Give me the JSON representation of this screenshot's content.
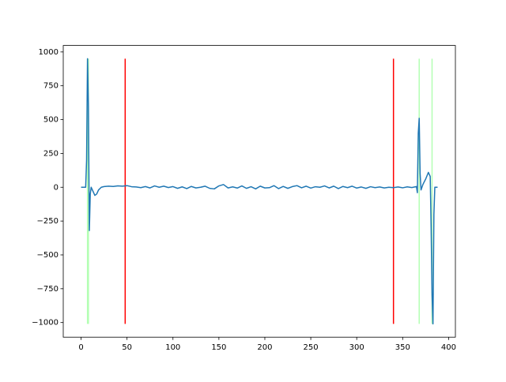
{
  "chart_data": {
    "type": "line",
    "x": [
      0,
      5,
      6,
      7,
      8,
      9,
      10,
      11,
      13,
      15,
      17,
      19,
      22,
      25,
      30,
      35,
      40,
      45,
      50,
      55,
      60,
      65,
      70,
      75,
      80,
      85,
      90,
      95,
      100,
      105,
      110,
      115,
      120,
      125,
      130,
      135,
      140,
      145,
      150,
      155,
      160,
      165,
      170,
      175,
      180,
      185,
      190,
      195,
      200,
      205,
      210,
      215,
      220,
      225,
      230,
      235,
      240,
      245,
      250,
      255,
      260,
      265,
      270,
      275,
      280,
      285,
      290,
      295,
      300,
      305,
      310,
      315,
      320,
      325,
      330,
      335,
      340,
      345,
      350,
      355,
      360,
      365,
      366,
      367,
      368,
      369,
      370,
      372,
      375,
      378,
      380,
      381,
      382,
      383,
      384,
      385,
      388
    ],
    "series": [
      {
        "color": "#1f77b4",
        "values": [
          0,
          0,
          200,
          950,
          600,
          -320,
          -50,
          0,
          -30,
          -60,
          -50,
          -20,
          0,
          5,
          8,
          6,
          10,
          8,
          12,
          4,
          2,
          -3,
          5,
          -5,
          10,
          0,
          8,
          -2,
          5,
          -8,
          3,
          -10,
          6,
          -5,
          0,
          8,
          -8,
          -12,
          10,
          20,
          -5,
          3,
          -6,
          10,
          -8,
          4,
          -12,
          8,
          -5,
          -3,
          12,
          -10,
          6,
          -8,
          5,
          12,
          -4,
          8,
          -6,
          4,
          0,
          10,
          -5,
          8,
          -10,
          6,
          -3,
          8,
          -6,
          2,
          -8,
          4,
          -3,
          2,
          -5,
          0,
          -3,
          2,
          -4,
          3,
          -2,
          5,
          -40,
          400,
          510,
          100,
          -20,
          20,
          60,
          110,
          80,
          -300,
          -800,
          -1010,
          -200,
          0,
          0
        ]
      }
    ],
    "vlines": [
      {
        "x": 7,
        "color": "#b3ffb3"
      },
      {
        "x": 8,
        "color": "#b3ffb3"
      },
      {
        "x": 48,
        "color": "#ff0000"
      },
      {
        "x": 340,
        "color": "#ff0000"
      },
      {
        "x": 368,
        "color": "#b3ffb3"
      },
      {
        "x": 382,
        "color": "#b3ffb3"
      }
    ],
    "vline_range": [
      -1010,
      950
    ],
    "xlim": [
      -19.4,
      407.4
    ],
    "ylim": [
      -1108,
      1048
    ],
    "xticks": [
      0,
      50,
      100,
      150,
      200,
      250,
      300,
      350,
      400
    ],
    "yticks": [
      {
        "value": -1000,
        "label": "−1000"
      },
      {
        "value": -750,
        "label": "−750"
      },
      {
        "value": -500,
        "label": "−500"
      },
      {
        "value": -250,
        "label": "−250"
      },
      0,
      250,
      500,
      750,
      1000
    ]
  }
}
